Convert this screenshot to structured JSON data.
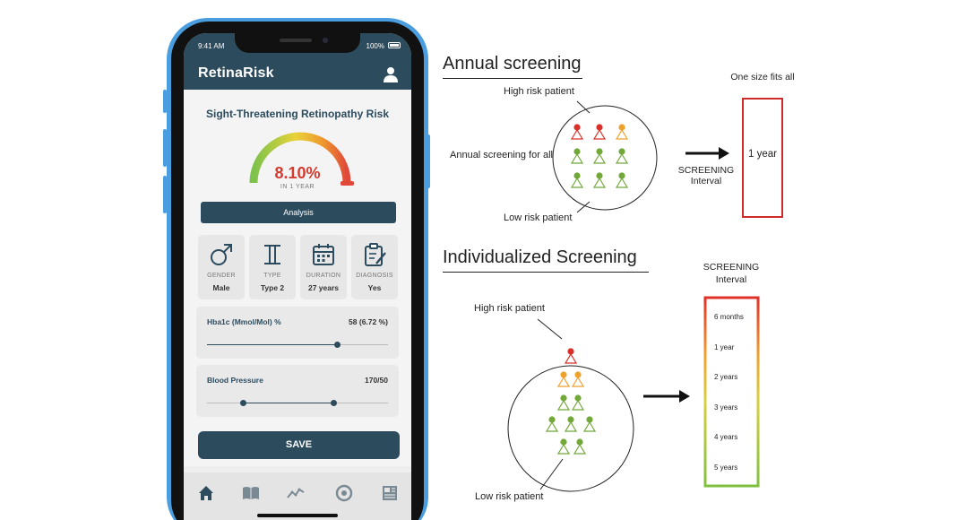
{
  "phone": {
    "status": {
      "time": "9:41 AM",
      "battery": "100%"
    },
    "app_title": "RetinaRisk",
    "risk_title": "Sight-Threatening Retinopathy Risk",
    "risk_value": "8.10%",
    "risk_period": "IN 1 YEAR",
    "risk_fraction": 0.81,
    "analysis_label": "Analysis",
    "tiles": [
      {
        "label": "GENDER",
        "value": "Male",
        "icon": "male-icon"
      },
      {
        "label": "TYPE",
        "value": "Type 2",
        "icon": "roman-two-icon"
      },
      {
        "label": "DURATION",
        "value": "27 years",
        "icon": "calendar-icon"
      },
      {
        "label": "DIAGNOSIS",
        "value": "Yes",
        "icon": "clipboard-icon"
      }
    ],
    "hba1c": {
      "label": "Hba1c (Mmol/Mol) %",
      "value": "58 (6.72 %)",
      "level": 0.72
    },
    "blood_pressure": {
      "label": "Blood Pressure",
      "value": "170/50",
      "low": 0.2,
      "high": 0.7
    },
    "save_label": "SAVE",
    "nav_icons": [
      "home-icon",
      "book-icon",
      "chart-icon",
      "target-icon",
      "news-icon"
    ],
    "colors": {
      "primary": "#2c4c5e",
      "risk": "#d63a2f",
      "frame": "#4a9ee0"
    }
  },
  "annual": {
    "title": "Annual screening",
    "high_risk_label": "High risk patient",
    "low_risk_label": "Low risk patient",
    "for_all_label": "Annual screening for all",
    "arrow_label_1": "SCREENING",
    "arrow_label_2": "Interval",
    "box_caption": "One size fits all",
    "interval": "1 year"
  },
  "individual": {
    "title": "Individualized Screening",
    "high_risk_label": "High risk patient",
    "low_risk_label": "Low risk patient",
    "interval_header_1": "SCREENING",
    "interval_header_2": "Interval",
    "intervals": [
      "6 months",
      "1 year",
      "2 years",
      "3 years",
      "4 years",
      "5 years"
    ]
  }
}
